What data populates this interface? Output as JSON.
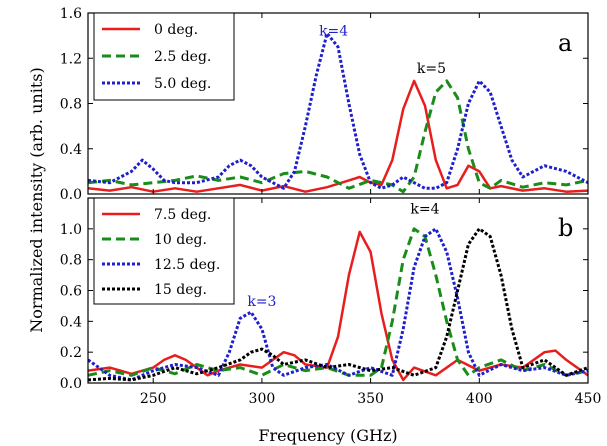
{
  "figure": {
    "xlabel": "Frequency (GHz)",
    "ylabel": "Normalized intensity (arb. units)"
  },
  "chart_data": [
    {
      "type": "line",
      "panel_label": "a",
      "xlim": [
        220,
        450
      ],
      "ylim": [
        0,
        1.6
      ],
      "yticks": [
        "0.0",
        "0.4",
        "0.8",
        "1.2",
        "1.6"
      ],
      "xticks": [],
      "legend_position": "top-left",
      "annotations": [
        {
          "text": "k=4",
          "x": 333,
          "y": 1.4,
          "color": "#1f1fcc"
        },
        {
          "text": "k=5",
          "x": 378,
          "y": 1.07,
          "color": "#000000"
        }
      ],
      "series": [
        {
          "name": "0 deg.",
          "color": "#e81e1e",
          "dash": "solid",
          "x": [
            220,
            230,
            240,
            250,
            260,
            270,
            280,
            290,
            300,
            310,
            320,
            330,
            340,
            345,
            350,
            355,
            360,
            365,
            370,
            375,
            380,
            385,
            390,
            395,
            400,
            405,
            410,
            420,
            430,
            440,
            450
          ],
          "y": [
            0.05,
            0.03,
            0.06,
            0.02,
            0.05,
            0.02,
            0.05,
            0.08,
            0.03,
            0.07,
            0.02,
            0.06,
            0.12,
            0.15,
            0.1,
            0.08,
            0.3,
            0.75,
            1.0,
            0.78,
            0.3,
            0.05,
            0.08,
            0.25,
            0.2,
            0.05,
            0.07,
            0.03,
            0.05,
            0.02,
            0.03
          ]
        },
        {
          "name": "2.5 deg.",
          "color": "#1a8c1a",
          "dash": "dash",
          "x": [
            220,
            230,
            240,
            250,
            260,
            270,
            280,
            290,
            300,
            310,
            320,
            330,
            340,
            350,
            360,
            365,
            370,
            375,
            380,
            385,
            390,
            395,
            400,
            405,
            410,
            420,
            430,
            440,
            450
          ],
          "y": [
            0.1,
            0.12,
            0.08,
            0.1,
            0.12,
            0.16,
            0.12,
            0.15,
            0.1,
            0.18,
            0.2,
            0.15,
            0.05,
            0.12,
            0.08,
            0.02,
            0.15,
            0.55,
            0.9,
            1.0,
            0.85,
            0.4,
            0.1,
            0.05,
            0.12,
            0.06,
            0.1,
            0.08,
            0.12
          ]
        },
        {
          "name": "5.0 deg.",
          "color": "#1f1fcc",
          "dash": "dot",
          "x": [
            220,
            230,
            240,
            245,
            250,
            255,
            260,
            270,
            280,
            285,
            290,
            295,
            300,
            305,
            310,
            315,
            320,
            325,
            330,
            335,
            340,
            345,
            350,
            355,
            360,
            365,
            370,
            375,
            380,
            385,
            390,
            395,
            400,
            405,
            410,
            415,
            420,
            430,
            440,
            450
          ],
          "y": [
            0.12,
            0.1,
            0.2,
            0.3,
            0.22,
            0.12,
            0.1,
            0.1,
            0.15,
            0.25,
            0.3,
            0.25,
            0.15,
            0.1,
            0.05,
            0.2,
            0.6,
            1.05,
            1.42,
            1.3,
            0.8,
            0.35,
            0.1,
            0.05,
            0.08,
            0.15,
            0.1,
            0.05,
            0.05,
            0.1,
            0.4,
            0.8,
            1.0,
            0.9,
            0.6,
            0.3,
            0.15,
            0.25,
            0.2,
            0.1
          ]
        }
      ]
    },
    {
      "type": "line",
      "panel_label": "b",
      "xlim": [
        220,
        450
      ],
      "ylim": [
        0,
        1.2
      ],
      "yticks": [
        "0.0",
        "0.2",
        "0.4",
        "0.6",
        "0.8",
        "1.0"
      ],
      "xticks": [
        "250",
        "300",
        "350",
        "400",
        "450"
      ],
      "legend_position": "top-left",
      "annotations": [
        {
          "text": "k=4",
          "x": 375,
          "y": 1.1,
          "color": "#000000"
        },
        {
          "text": "k=3",
          "x": 300,
          "y": 0.5,
          "color": "#1f1fcc"
        }
      ],
      "series": [
        {
          "name": "7.5 deg.",
          "color": "#e81e1e",
          "dash": "solid",
          "x": [
            220,
            230,
            240,
            250,
            255,
            260,
            265,
            270,
            275,
            280,
            290,
            300,
            305,
            310,
            315,
            320,
            330,
            335,
            340,
            345,
            350,
            355,
            360,
            365,
            370,
            380,
            390,
            400,
            410,
            420,
            430,
            435,
            440,
            450
          ],
          "y": [
            0.08,
            0.1,
            0.06,
            0.1,
            0.15,
            0.18,
            0.15,
            0.1,
            0.05,
            0.08,
            0.12,
            0.1,
            0.15,
            0.2,
            0.18,
            0.12,
            0.1,
            0.3,
            0.7,
            0.98,
            0.85,
            0.45,
            0.15,
            0.02,
            0.1,
            0.05,
            0.15,
            0.08,
            0.12,
            0.1,
            0.2,
            0.21,
            0.15,
            0.05
          ]
        },
        {
          "name": "10 deg.",
          "color": "#1a8c1a",
          "dash": "dash",
          "x": [
            220,
            230,
            240,
            250,
            260,
            270,
            280,
            290,
            300,
            310,
            320,
            330,
            340,
            350,
            355,
            360,
            365,
            370,
            375,
            380,
            385,
            390,
            395,
            400,
            410,
            420,
            430,
            440,
            450
          ],
          "y": [
            0.05,
            0.08,
            0.05,
            0.1,
            0.06,
            0.12,
            0.08,
            0.1,
            0.05,
            0.12,
            0.08,
            0.1,
            0.05,
            0.05,
            0.1,
            0.4,
            0.8,
            1.0,
            0.95,
            0.7,
            0.4,
            0.15,
            0.05,
            0.1,
            0.15,
            0.08,
            0.12,
            0.05,
            0.08
          ]
        },
        {
          "name": "12.5 deg.",
          "color": "#1f1fcc",
          "dash": "dot",
          "x": [
            220,
            225,
            230,
            240,
            250,
            260,
            270,
            280,
            285,
            290,
            295,
            300,
            305,
            310,
            320,
            330,
            340,
            350,
            360,
            365,
            370,
            375,
            380,
            385,
            390,
            395,
            400,
            410,
            420,
            430,
            440,
            450
          ],
          "y": [
            0.15,
            0.1,
            0.05,
            0.02,
            0.08,
            0.12,
            0.1,
            0.05,
            0.2,
            0.42,
            0.46,
            0.35,
            0.1,
            0.05,
            0.1,
            0.12,
            0.05,
            0.1,
            0.05,
            0.35,
            0.75,
            0.95,
            1.0,
            0.85,
            0.55,
            0.2,
            0.05,
            0.12,
            0.08,
            0.1,
            0.05,
            0.08
          ]
        },
        {
          "name": "15 deg.",
          "color": "#000000",
          "dash": "dot",
          "x": [
            220,
            230,
            240,
            250,
            260,
            270,
            280,
            290,
            295,
            300,
            305,
            310,
            320,
            330,
            340,
            350,
            360,
            370,
            380,
            385,
            390,
            395,
            400,
            405,
            410,
            415,
            420,
            430,
            440,
            450
          ],
          "y": [
            0.02,
            0.03,
            0.02,
            0.05,
            0.1,
            0.06,
            0.1,
            0.15,
            0.2,
            0.22,
            0.18,
            0.12,
            0.15,
            0.1,
            0.12,
            0.08,
            0.1,
            0.05,
            0.1,
            0.3,
            0.6,
            0.9,
            1.0,
            0.95,
            0.7,
            0.35,
            0.1,
            0.15,
            0.05,
            0.1
          ]
        }
      ]
    }
  ]
}
